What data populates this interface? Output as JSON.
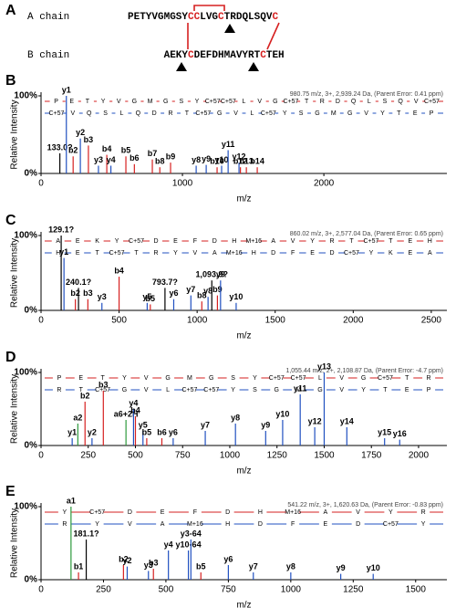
{
  "sequence_panel": {
    "label": "A",
    "chains": [
      {
        "name": "A chain",
        "name_color": "#2e9a3c",
        "segments": [
          {
            "text": "PETYVGMGSY",
            "color": "#000000"
          },
          {
            "text": "CC",
            "color": "#d62020"
          },
          {
            "text": "LVG",
            "color": "#000000"
          },
          {
            "text": "C",
            "color": "#d62020"
          },
          {
            "text": "TRDQLSQV",
            "color": "#000000"
          },
          {
            "text": "C",
            "color": "#d62020"
          }
        ]
      },
      {
        "name": "B chain",
        "name_color": "#2040c0",
        "segments": [
          {
            "text": "AEKY",
            "color": "#000000"
          },
          {
            "text": "C",
            "color": "#d62020"
          },
          {
            "text": "DEFDHMAVYRT",
            "color": "#000000"
          },
          {
            "text": "C",
            "color": "#d62020"
          },
          {
            "text": "TEH",
            "color": "#000000"
          }
        ]
      }
    ]
  },
  "chart_data": [
    {
      "type": "stem",
      "label": "B",
      "ylabel": "Relative Intensity",
      "xlabel": "m/z",
      "precursor": "980.75 m/z, 3+, 2,939.24 Da, (Parent Error: 0.41 ppm)",
      "xlim": [
        0,
        2870
      ],
      "xticks": [
        0,
        1000,
        2000
      ],
      "ylim": [
        0,
        100
      ],
      "yticks": [
        {
          "value": 0,
          "label": "0%"
        },
        {
          "value": 100,
          "label": "100%"
        }
      ],
      "ladders": [
        {
          "color": "#d62020",
          "residues": [
            "P",
            "E",
            "T",
            "Y",
            "V",
            "G",
            "M",
            "G",
            "S",
            "Y",
            "C+57",
            "C+57",
            "L",
            "V",
            "G",
            "C+57",
            "T",
            "R",
            "D",
            "Q",
            "L",
            "S",
            "Q",
            "V",
            "C+57"
          ]
        },
        {
          "color": "#2050c0",
          "residues": [
            "C+57",
            "V",
            "Q",
            "S",
            "L",
            "Q",
            "D",
            "R",
            "T",
            "C+57",
            "G",
            "V",
            "L",
            "C+57",
            "Y",
            "S",
            "G",
            "M",
            "G",
            "V",
            "Y",
            "T",
            "E",
            "P"
          ]
        }
      ],
      "peaks": [
        {
          "label": "133.0?",
          "x": 133,
          "y": 26,
          "color": "#000000"
        },
        {
          "label": "y1",
          "x": 179,
          "y": 100,
          "color": "#2050c0"
        },
        {
          "label": "b2",
          "x": 227,
          "y": 22,
          "color": "#d62020"
        },
        {
          "label": "y2",
          "x": 278,
          "y": 45,
          "color": "#2050c0"
        },
        {
          "label": "b3",
          "x": 335,
          "y": 36,
          "color": "#d62020"
        },
        {
          "label": "y3",
          "x": 406,
          "y": 10,
          "color": "#2050c0"
        },
        {
          "label": "b4",
          "x": 465,
          "y": 24,
          "color": "#d62020"
        },
        {
          "label": "y4",
          "x": 494,
          "y": 10,
          "color": "#2050c0"
        },
        {
          "label": "b5",
          "x": 600,
          "y": 22,
          "color": "#d62020"
        },
        {
          "label": "b6",
          "x": 660,
          "y": 12,
          "color": "#d62020"
        },
        {
          "label": "b7",
          "x": 787,
          "y": 18,
          "color": "#d62020"
        },
        {
          "label": "b8",
          "x": 840,
          "y": 8,
          "color": "#d62020"
        },
        {
          "label": "b9",
          "x": 916,
          "y": 14,
          "color": "#d62020"
        },
        {
          "label": "y8",
          "x": 1097,
          "y": 10,
          "color": "#2050c0"
        },
        {
          "label": "y9",
          "x": 1168,
          "y": 11,
          "color": "#2050c0"
        },
        {
          "label": "b10",
          "x": 1245,
          "y": 8,
          "color": "#d62020"
        },
        {
          "label": "y10",
          "x": 1277,
          "y": 10,
          "color": "#2050c0"
        },
        {
          "label": "y11",
          "x": 1323,
          "y": 30,
          "color": "#2050c0"
        },
        {
          "label": "y12",
          "x": 1400,
          "y": 14,
          "color": "#2050c0"
        },
        {
          "label": "b12",
          "x": 1410,
          "y": 8,
          "color": "#d62020"
        },
        {
          "label": "b13",
          "x": 1452,
          "y": 8,
          "color": "#d62020"
        },
        {
          "label": "b14",
          "x": 1529,
          "y": 8,
          "color": "#d62020"
        }
      ]
    },
    {
      "type": "stem",
      "label": "C",
      "ylabel": "Relative Intensity",
      "xlabel": "m/z",
      "precursor": "860.02 m/z, 3+, 2,577.04 Da, (Parent Error: 0.65 ppm)",
      "xlim": [
        0,
        2600
      ],
      "xticks": [
        0,
        500,
        1000,
        1500,
        2000,
        2500
      ],
      "ylim": [
        0,
        100
      ],
      "yticks": [
        {
          "value": 0,
          "label": "0%"
        },
        {
          "value": 100,
          "label": "100%"
        }
      ],
      "ladders": [
        {
          "color": "#d62020",
          "residues": [
            "A",
            "E",
            "K",
            "Y",
            "C+57",
            "D",
            "E",
            "F",
            "D",
            "H",
            "M+16",
            "A",
            "V",
            "Y",
            "R",
            "T",
            "C+57",
            "T",
            "E",
            "H"
          ]
        },
        {
          "color": "#2050c0",
          "residues": [
            "H",
            "E",
            "T",
            "C+57",
            "T",
            "R",
            "Y",
            "V",
            "A",
            "M+16",
            "H",
            "D",
            "F",
            "E",
            "D",
            "C+57",
            "Y",
            "K",
            "E",
            "A"
          ]
        }
      ],
      "peaks": [
        {
          "label": "129.1?",
          "x": 129,
          "y": 100,
          "color": "#000000"
        },
        {
          "label": "y1",
          "x": 147,
          "y": 70,
          "color": "#2050c0"
        },
        {
          "label": "b2",
          "x": 220,
          "y": 15,
          "color": "#d62020"
        },
        {
          "label": "240.1?",
          "x": 240,
          "y": 30,
          "color": "#000000"
        },
        {
          "label": "b3",
          "x": 300,
          "y": 15,
          "color": "#d62020"
        },
        {
          "label": "y3",
          "x": 390,
          "y": 10,
          "color": "#2050c0"
        },
        {
          "label": "b4",
          "x": 500,
          "y": 45,
          "color": "#d62020"
        },
        {
          "label": "y5",
          "x": 680,
          "y": 10,
          "color": "#2050c0"
        },
        {
          "label": "b5",
          "x": 700,
          "y": 8,
          "color": "#d62020"
        },
        {
          "label": "793.7?",
          "x": 794,
          "y": 30,
          "color": "#000000"
        },
        {
          "label": "y6",
          "x": 850,
          "y": 15,
          "color": "#2050c0"
        },
        {
          "label": "y7",
          "x": 960,
          "y": 20,
          "color": "#2050c0"
        },
        {
          "label": "b8",
          "x": 1030,
          "y": 12,
          "color": "#d62020"
        },
        {
          "label": "y8",
          "x": 1070,
          "y": 18,
          "color": "#2050c0"
        },
        {
          "label": "1,093.9?",
          "x": 1094,
          "y": 40,
          "color": "#000000"
        },
        {
          "label": "b9",
          "x": 1130,
          "y": 20,
          "color": "#d62020"
        },
        {
          "label": "y9",
          "x": 1150,
          "y": 40,
          "color": "#2050c0"
        },
        {
          "label": "y10",
          "x": 1250,
          "y": 10,
          "color": "#2050c0"
        }
      ]
    },
    {
      "type": "stem",
      "label": "D",
      "ylabel": "Relative Intensity",
      "xlabel": "m/z",
      "precursor": "1,055.44 m/z, 2+, 2,108.87 Da, (Parent Error: -4.7 ppm)",
      "xlim": [
        0,
        2150
      ],
      "xticks": [
        0,
        250,
        500,
        750,
        1000,
        1250,
        1500,
        1750,
        2000
      ],
      "ylim": [
        0,
        100
      ],
      "yticks": [
        {
          "value": 0,
          "label": "0%"
        },
        {
          "value": 100,
          "label": "100%"
        }
      ],
      "ladders": [
        {
          "color": "#d62020",
          "residues": [
            "P",
            "E",
            "T",
            "Y",
            "V",
            "G",
            "M",
            "G",
            "S",
            "Y",
            "C+57",
            "C+57",
            "L",
            "V",
            "G",
            "C+57",
            "T",
            "R"
          ]
        },
        {
          "color": "#2050c0",
          "residues": [
            "R",
            "T",
            "C+57",
            "G",
            "V",
            "L",
            "C+57",
            "C+57",
            "Y",
            "S",
            "G",
            "M",
            "G",
            "V",
            "Y",
            "T",
            "E",
            "P"
          ]
        }
      ],
      "peaks": [
        {
          "label": "y1",
          "x": 165,
          "y": 10,
          "color": "#2050c0"
        },
        {
          "label": "a2",
          "x": 195,
          "y": 30,
          "color": "#2e9a3c"
        },
        {
          "label": "b2",
          "x": 233,
          "y": 60,
          "color": "#d62020"
        },
        {
          "label": "y2",
          "x": 270,
          "y": 10,
          "color": "#2050c0"
        },
        {
          "label": "b3",
          "x": 330,
          "y": 75,
          "color": "#d62020"
        },
        {
          "label": "a6+2H",
          "x": 450,
          "y": 35,
          "color": "#2e9a3c"
        },
        {
          "label": "y4",
          "x": 490,
          "y": 50,
          "color": "#2050c0"
        },
        {
          "label": "b4",
          "x": 500,
          "y": 40,
          "color": "#d62020"
        },
        {
          "label": "y5",
          "x": 540,
          "y": 20,
          "color": "#2050c0"
        },
        {
          "label": "b5",
          "x": 560,
          "y": 10,
          "color": "#d62020"
        },
        {
          "label": "b6",
          "x": 640,
          "y": 10,
          "color": "#d62020"
        },
        {
          "label": "y6",
          "x": 700,
          "y": 10,
          "color": "#2050c0"
        },
        {
          "label": "y7",
          "x": 870,
          "y": 20,
          "color": "#2050c0"
        },
        {
          "label": "y8",
          "x": 1030,
          "y": 30,
          "color": "#2050c0"
        },
        {
          "label": "y9",
          "x": 1190,
          "y": 20,
          "color": "#2050c0"
        },
        {
          "label": "y10",
          "x": 1280,
          "y": 35,
          "color": "#2050c0"
        },
        {
          "label": "y11",
          "x": 1373,
          "y": 70,
          "color": "#2050c0"
        },
        {
          "label": "y12",
          "x": 1450,
          "y": 25,
          "color": "#2050c0"
        },
        {
          "label": "y13",
          "x": 1500,
          "y": 100,
          "color": "#2050c0"
        },
        {
          "label": "y14",
          "x": 1620,
          "y": 25,
          "color": "#2050c0"
        },
        {
          "label": "y15",
          "x": 1820,
          "y": 10,
          "color": "#2050c0"
        },
        {
          "label": "y16",
          "x": 1900,
          "y": 8,
          "color": "#2050c0"
        }
      ]
    },
    {
      "type": "stem",
      "label": "E",
      "ylabel": "Relative Intensity",
      "xlabel": "m/z",
      "precursor": "541.22 m/z, 3+, 1,620.63 Da, (Parent Error: -0.83 ppm)",
      "xlim": [
        0,
        1625
      ],
      "xticks": [
        0,
        250,
        500,
        750,
        1000,
        1250,
        1500
      ],
      "ylim": [
        0,
        100
      ],
      "yticks": [
        {
          "value": 0,
          "label": "0%"
        },
        {
          "value": 100,
          "label": "100%"
        }
      ],
      "ladders": [
        {
          "color": "#d62020",
          "residues": [
            "Y",
            "C+57",
            "D",
            "E",
            "F",
            "D",
            "H",
            "M+16",
            "A",
            "V",
            "Y",
            "R"
          ]
        },
        {
          "color": "#2050c0",
          "residues": [
            "R",
            "Y",
            "V",
            "A",
            "M+16",
            "H",
            "D",
            "F",
            "E",
            "D",
            "C+57",
            "Y"
          ]
        }
      ],
      "peaks": [
        {
          "label": "a1",
          "x": 120,
          "y": 100,
          "color": "#2e9a3c"
        },
        {
          "label": "b1",
          "x": 150,
          "y": 10,
          "color": "#d62020"
        },
        {
          "label": "181.1?",
          "x": 181,
          "y": 55,
          "color": "#000000"
        },
        {
          "label": "b2",
          "x": 330,
          "y": 20,
          "color": "#d62020"
        },
        {
          "label": "y2",
          "x": 345,
          "y": 18,
          "color": "#2050c0"
        },
        {
          "label": "y3",
          "x": 430,
          "y": 12,
          "color": "#2050c0"
        },
        {
          "label": "b3",
          "x": 450,
          "y": 15,
          "color": "#d62020"
        },
        {
          "label": "y4",
          "x": 510,
          "y": 40,
          "color": "#2050c0"
        },
        {
          "label": "y10-64",
          "x": 590,
          "y": 40,
          "color": "#2050c0"
        },
        {
          "label": "y3-64",
          "x": 600,
          "y": 55,
          "color": "#2050c0"
        },
        {
          "label": "b5",
          "x": 640,
          "y": 10,
          "color": "#d62020"
        },
        {
          "label": "y6",
          "x": 750,
          "y": 20,
          "color": "#2050c0"
        },
        {
          "label": "y7",
          "x": 850,
          "y": 10,
          "color": "#2050c0"
        },
        {
          "label": "y8",
          "x": 1000,
          "y": 10,
          "color": "#2050c0"
        },
        {
          "label": "y9",
          "x": 1200,
          "y": 8,
          "color": "#2050c0"
        },
        {
          "label": "y10",
          "x": 1330,
          "y": 8,
          "color": "#2050c0"
        }
      ]
    }
  ]
}
